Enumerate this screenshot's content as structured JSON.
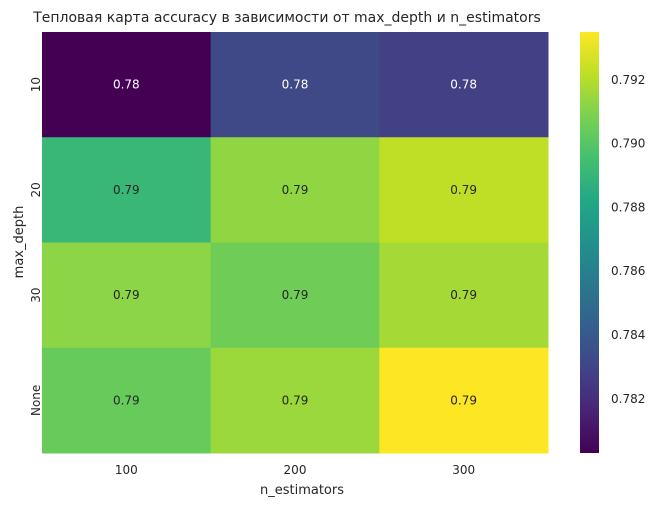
{
  "chart_data": {
    "type": "heatmap",
    "title": "Тепловая карта accuracy в зависимости от max_depth и n_estimators",
    "xlabel": "n_estimators",
    "ylabel": "max_depth",
    "x_categories": [
      "100",
      "200",
      "300"
    ],
    "y_categories": [
      "10",
      "20",
      "30",
      "None"
    ],
    "values": [
      [
        0.7803,
        0.7832,
        0.7828
      ],
      [
        0.7891,
        0.7913,
        0.7922
      ],
      [
        0.7912,
        0.7906,
        0.7917
      ],
      [
        0.7904,
        0.7915,
        0.7935
      ]
    ],
    "cell_labels": [
      [
        "0.78",
        "0.78",
        "0.78"
      ],
      [
        "0.79",
        "0.79",
        "0.79"
      ],
      [
        "0.79",
        "0.79",
        "0.79"
      ],
      [
        "0.79",
        "0.79",
        "0.79"
      ]
    ],
    "colormap": "viridis",
    "color_range": [
      0.7803,
      0.7935
    ],
    "colorbar_ticks": [
      "0.782",
      "0.784",
      "0.786",
      "0.788",
      "0.790",
      "0.792"
    ],
    "colorbar_tick_values": [
      0.782,
      0.784,
      0.786,
      0.788,
      0.79,
      0.792
    ],
    "grid": false
  }
}
